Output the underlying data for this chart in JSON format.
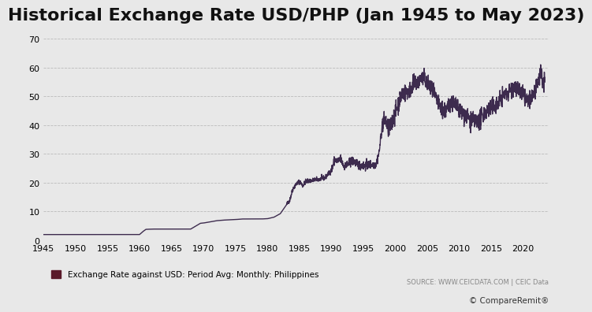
{
  "title": "Historical Exchange Rate USD/PHP (Jan 1945 to May 2023)",
  "title_fontsize": 16,
  "background_color": "#e8e8e8",
  "plot_bg_color": "#e8e8e8",
  "line_color": "#3d2b4e",
  "line_width": 1.0,
  "ylabel_ticks": [
    0,
    10,
    20,
    30,
    40,
    50,
    60,
    70
  ],
  "xlim": [
    1945,
    2024
  ],
  "ylim": [
    0,
    72
  ],
  "xticks": [
    1945,
    1950,
    1955,
    1960,
    1965,
    1970,
    1975,
    1980,
    1985,
    1990,
    1995,
    2000,
    2005,
    2010,
    2015,
    2020
  ],
  "legend_label": "Exchange Rate against USD: Period Avg: Monthly: Philippines",
  "legend_color": "#5a1a2a",
  "source_text": "SOURCE: WWW.CEICDATA.COM | CEIC Data",
  "grid_color": "#bbbbbb",
  "grid_linestyle": "dashed",
  "grid_linewidth": 0.6
}
